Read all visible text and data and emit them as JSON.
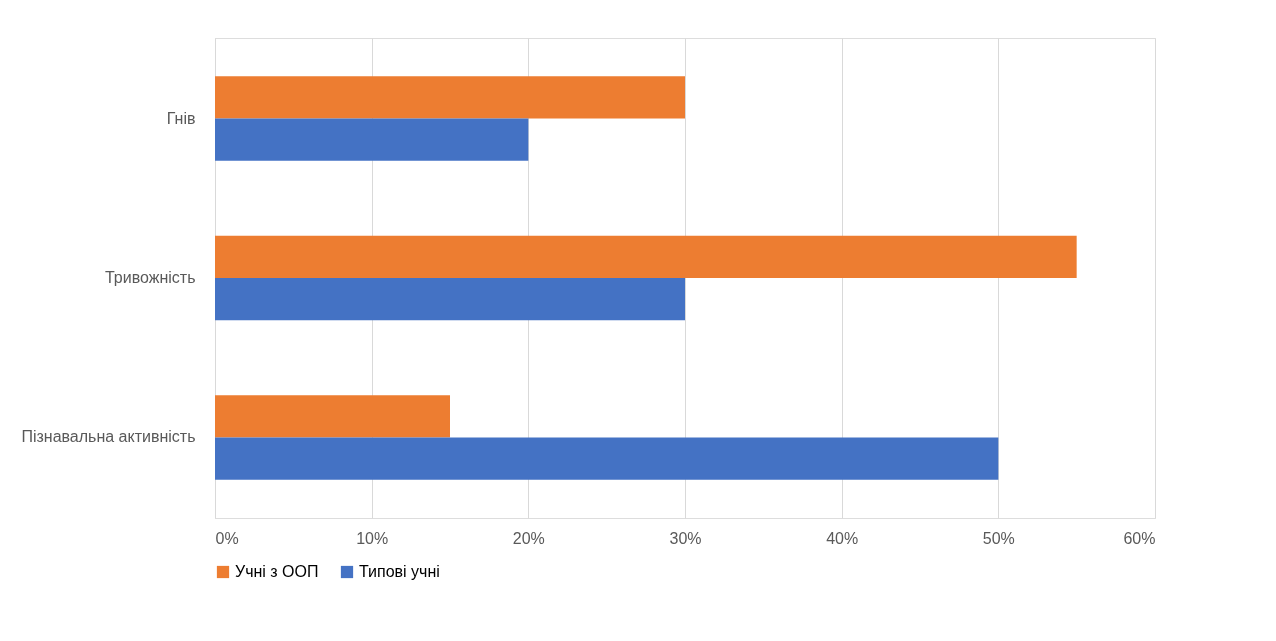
{
  "chart_data": {
    "type": "bar",
    "orientation": "horizontal",
    "categories": [
      "Гнів",
      "Тривожність",
      "Пізнавальна активність"
    ],
    "series": [
      {
        "name": "Учні з ООП",
        "color": "#ed7d31",
        "values": [
          30,
          55,
          15
        ]
      },
      {
        "name": "Типові учні",
        "color": "#4472c4",
        "values": [
          20,
          30,
          50
        ]
      }
    ],
    "xlim": [
      0,
      60
    ],
    "xticks": [
      {
        "value": 0,
        "label": "0%"
      },
      {
        "value": 10,
        "label": "10%"
      },
      {
        "value": 20,
        "label": "20%"
      },
      {
        "value": 30,
        "label": "30%"
      },
      {
        "value": 40,
        "label": "40%"
      },
      {
        "value": 50,
        "label": "50%"
      },
      {
        "value": 60,
        "label": "60%"
      }
    ],
    "grid": "x",
    "legend": "bottom"
  }
}
